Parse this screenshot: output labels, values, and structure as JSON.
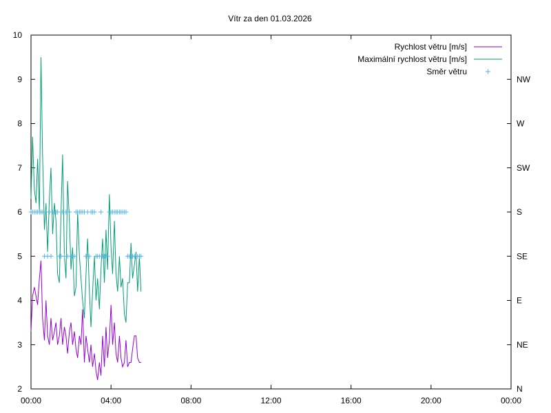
{
  "chart_data": {
    "type": "line",
    "title": "Vítr za den 01.03.2026",
    "xlabel": "",
    "ylabel": "",
    "x_ticks": [
      "00:00",
      "04:00",
      "08:00",
      "12:00",
      "16:00",
      "20:00",
      "00:00"
    ],
    "x_range_hours": [
      0,
      24
    ],
    "y_range": [
      2,
      10
    ],
    "y_ticks": [
      "2",
      "3",
      "4",
      "5",
      "6",
      "7",
      "8",
      "9",
      "10"
    ],
    "y2_ticks": [
      "N",
      "NE",
      "E",
      "SE",
      "S",
      "SW",
      "W",
      "NW"
    ],
    "grid": false,
    "legend_position": "top-right",
    "colors": {
      "speed": "#9400d3",
      "max_speed": "#009e73",
      "direction": "#56b4e9"
    },
    "series": [
      {
        "name": "Rychlost větru [m/s]",
        "style": "line",
        "x_hours": [
          0.0,
          0.08,
          0.17,
          0.25,
          0.33,
          0.42,
          0.5,
          0.58,
          0.67,
          0.75,
          0.83,
          0.92,
          1.0,
          1.08,
          1.17,
          1.25,
          1.33,
          1.42,
          1.5,
          1.58,
          1.67,
          1.75,
          1.83,
          1.92,
          2.0,
          2.08,
          2.17,
          2.25,
          2.33,
          2.42,
          2.5,
          2.58,
          2.67,
          2.75,
          2.83,
          2.92,
          3.0,
          3.08,
          3.17,
          3.25,
          3.33,
          3.42,
          3.5,
          3.58,
          3.67,
          3.75,
          3.83,
          3.92,
          4.0,
          4.08,
          4.17,
          4.25,
          4.33,
          4.42,
          4.5,
          4.58,
          4.67,
          4.75,
          4.83,
          4.92,
          5.0,
          5.08,
          5.17,
          5.25,
          5.33,
          5.42,
          5.5
        ],
        "values": [
          3.3,
          4.1,
          4.3,
          4.1,
          3.9,
          4.5,
          4.9,
          3.6,
          3.1,
          4.0,
          3.2,
          3.0,
          3.6,
          3.1,
          3.3,
          3.5,
          3.0,
          3.2,
          3.6,
          3.0,
          3.4,
          3.2,
          2.8,
          3.3,
          3.5,
          3.0,
          3.3,
          2.9,
          2.7,
          3.2,
          3.0,
          3.8,
          2.6,
          3.2,
          2.9,
          2.6,
          3.0,
          2.5,
          2.8,
          2.4,
          2.2,
          2.6,
          2.3,
          3.2,
          2.5,
          3.4,
          2.7,
          3.1,
          3.9,
          3.0,
          3.5,
          2.8,
          2.6,
          3.2,
          2.7,
          2.5,
          2.6,
          3.1,
          2.5,
          2.6,
          2.6,
          2.9,
          3.2,
          3.2,
          2.7,
          2.6,
          2.6
        ]
      },
      {
        "name": "Maximální rychlost větru [m/s]",
        "style": "line",
        "x_hours": [
          0.0,
          0.08,
          0.17,
          0.25,
          0.33,
          0.42,
          0.5,
          0.58,
          0.67,
          0.75,
          0.83,
          0.92,
          1.0,
          1.08,
          1.17,
          1.25,
          1.33,
          1.42,
          1.5,
          1.58,
          1.67,
          1.75,
          1.83,
          1.92,
          2.0,
          2.08,
          2.17,
          2.25,
          2.33,
          2.42,
          2.5,
          2.58,
          2.67,
          2.75,
          2.83,
          2.92,
          3.0,
          3.08,
          3.17,
          3.25,
          3.33,
          3.42,
          3.5,
          3.58,
          3.67,
          3.75,
          3.83,
          3.92,
          4.0,
          4.08,
          4.17,
          4.25,
          4.33,
          4.42,
          4.5,
          4.58,
          4.67,
          4.75,
          4.83,
          4.92,
          5.0,
          5.08,
          5.17,
          5.25,
          5.33,
          5.42,
          5.5
        ],
        "values": [
          6.3,
          7.7,
          6.5,
          6.2,
          7.2,
          6.0,
          9.5,
          7.3,
          5.6,
          6.2,
          5.1,
          6.3,
          7.0,
          5.5,
          6.2,
          5.8,
          4.6,
          4.4,
          6.0,
          7.3,
          5.0,
          4.5,
          6.7,
          5.8,
          4.7,
          5.2,
          4.1,
          4.3,
          6.0,
          5.0,
          4.5,
          4.0,
          3.6,
          4.6,
          5.4,
          4.2,
          3.4,
          4.2,
          5.0,
          4.0,
          4.5,
          3.8,
          4.7,
          5.4,
          4.4,
          5.6,
          4.7,
          6.4,
          5.2,
          4.6,
          5.8,
          4.6,
          4.2,
          5.0,
          4.3,
          4.5,
          3.7,
          3.5,
          4.4,
          4.4,
          5.3,
          4.5,
          4.8,
          5.1,
          4.2,
          5.0,
          4.2
        ]
      },
      {
        "name": "Směr větru",
        "style": "points",
        "axis": "y2",
        "x_hours": [
          0.0,
          0.08,
          0.17,
          0.25,
          0.33,
          0.42,
          0.5,
          0.58,
          0.67,
          0.75,
          0.83,
          0.92,
          1.0,
          1.08,
          1.17,
          1.25,
          1.33,
          1.42,
          1.5,
          1.58,
          1.67,
          1.75,
          1.83,
          1.92,
          2.0,
          2.08,
          2.17,
          2.25,
          2.33,
          2.42,
          2.5,
          2.58,
          2.67,
          2.75,
          2.83,
          2.92,
          3.0,
          3.08,
          3.17,
          3.25,
          3.33,
          3.42,
          3.5,
          3.58,
          3.67,
          3.75,
          3.83,
          3.92,
          4.0,
          4.08,
          4.17,
          4.25,
          4.33,
          4.42,
          4.5,
          4.58,
          4.67,
          4.75,
          4.83,
          4.92,
          5.0,
          5.08,
          5.17,
          5.25,
          5.33,
          5.42,
          5.5
        ],
        "values": [
          "S",
          "S",
          "S",
          "S",
          "S",
          "S",
          "S",
          "S",
          "SE",
          "S",
          "SE",
          "S",
          "SE",
          "S",
          "S",
          "S",
          "S",
          "SE",
          "SE",
          "S",
          "SE",
          "S",
          "SE",
          "S",
          "SE",
          "SE",
          "SE",
          "S",
          "S",
          "S",
          "S",
          "S",
          "S",
          "SE",
          "S",
          "SE",
          "S",
          "S",
          "S",
          "SE",
          "SE",
          "SE",
          "S",
          "SE",
          "SE",
          "SE",
          "SE",
          "S",
          "S",
          "S",
          "S",
          "S",
          "S",
          "S",
          "S",
          "S",
          "S",
          "S",
          "SE",
          "SE",
          "SE",
          "SE",
          "SE",
          "SE",
          "SE",
          "SE",
          "SE"
        ]
      }
    ]
  }
}
